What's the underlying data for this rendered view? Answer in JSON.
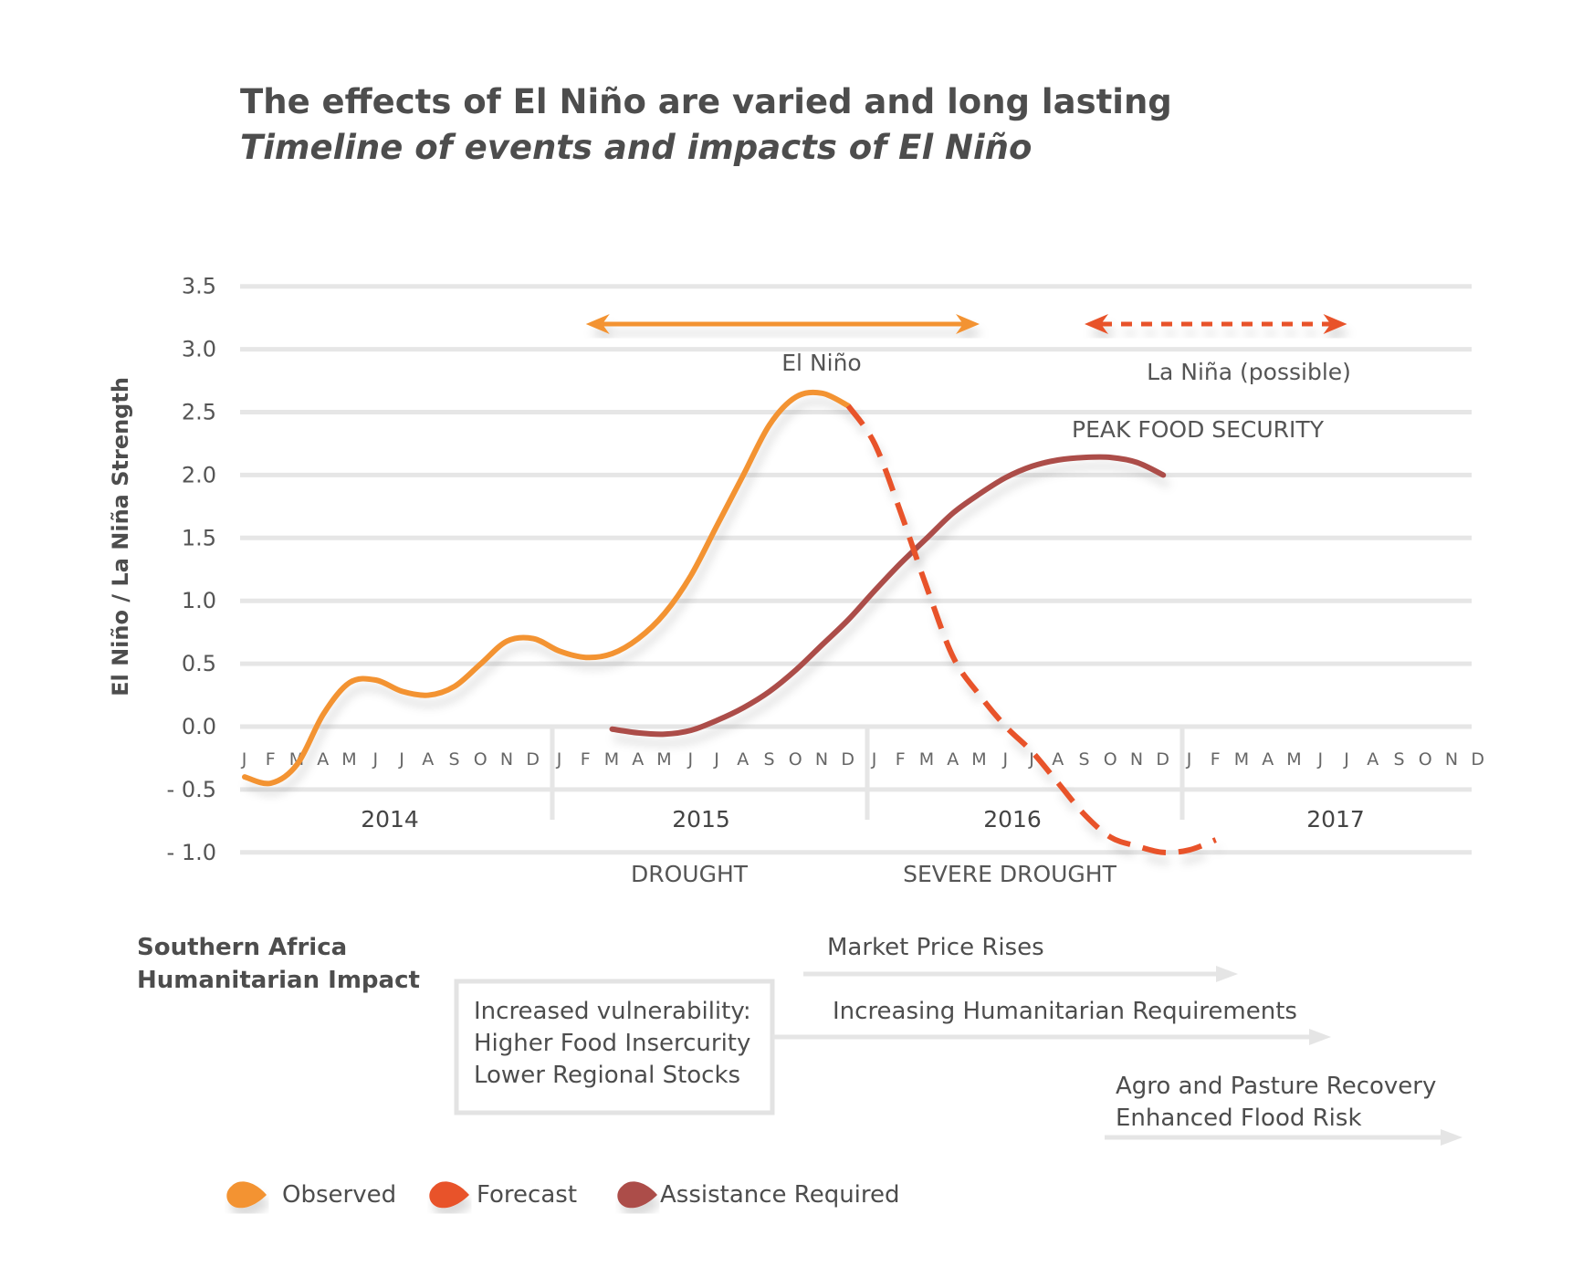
{
  "chart_data": {
    "type": "line",
    "title": "The effects of El Niño are varied and long lasting",
    "subtitle": "Timeline of events and impacts of El Niño",
    "ylabel": "El Niño / La Niña Strength",
    "ylim": [
      -1.0,
      3.5
    ],
    "yticks": [
      "3.5",
      "3.0",
      "2.5",
      "2.0",
      "1.5",
      "1.0",
      "0.5",
      "0.0",
      "- 0.5",
      "- 1.0"
    ],
    "ytick_values": [
      3.5,
      3.0,
      2.5,
      2.0,
      1.5,
      1.0,
      0.5,
      0.0,
      -0.5,
      -1.0
    ],
    "grid": true,
    "month_labels": [
      "J",
      "F",
      "M",
      "A",
      "M",
      "J",
      "J",
      "A",
      "S",
      "O",
      "N",
      "D"
    ],
    "years": [
      "2014",
      "2015",
      "2016",
      "2017"
    ],
    "series": [
      {
        "name": "Observed",
        "color": "#f39333",
        "style": "solid",
        "points": [
          [
            0,
            -0.4
          ],
          [
            1,
            -0.45
          ],
          [
            2,
            -0.3
          ],
          [
            3,
            0.1
          ],
          [
            4,
            0.35
          ],
          [
            5,
            0.37
          ],
          [
            6,
            0.28
          ],
          [
            7,
            0.25
          ],
          [
            8,
            0.32
          ],
          [
            9,
            0.5
          ],
          [
            10,
            0.68
          ],
          [
            11,
            0.7
          ],
          [
            12,
            0.6
          ],
          [
            13,
            0.55
          ],
          [
            14,
            0.58
          ],
          [
            15,
            0.7
          ],
          [
            16,
            0.9
          ],
          [
            17,
            1.2
          ],
          [
            18,
            1.6
          ],
          [
            19,
            2.0
          ],
          [
            20,
            2.4
          ],
          [
            21,
            2.62
          ],
          [
            22,
            2.65
          ],
          [
            23,
            2.55
          ]
        ]
      },
      {
        "name": "Forecast",
        "color": "#e8522a",
        "style": "dashed",
        "points": [
          [
            23,
            2.55
          ],
          [
            24,
            2.25
          ],
          [
            25,
            1.7
          ],
          [
            26,
            1.1
          ],
          [
            27,
            0.55
          ],
          [
            28,
            0.25
          ],
          [
            29,
            0.0
          ],
          [
            30,
            -0.2
          ],
          [
            31,
            -0.45
          ],
          [
            32,
            -0.7
          ],
          [
            33,
            -0.88
          ],
          [
            34,
            -0.95
          ],
          [
            35,
            -1.0
          ],
          [
            36,
            -0.98
          ],
          [
            37,
            -0.9
          ]
        ]
      },
      {
        "name": "Assistance Required",
        "color": "#ac4d48",
        "style": "solid",
        "points": [
          [
            14,
            -0.02
          ],
          [
            15,
            -0.05
          ],
          [
            16,
            -0.06
          ],
          [
            17,
            -0.03
          ],
          [
            18,
            0.05
          ],
          [
            19,
            0.15
          ],
          [
            20,
            0.28
          ],
          [
            21,
            0.45
          ],
          [
            22,
            0.65
          ],
          [
            23,
            0.85
          ],
          [
            24,
            1.08
          ],
          [
            25,
            1.3
          ],
          [
            26,
            1.5
          ],
          [
            27,
            1.7
          ],
          [
            28,
            1.85
          ],
          [
            29,
            1.98
          ],
          [
            30,
            2.07
          ],
          [
            31,
            2.12
          ],
          [
            32,
            2.14
          ],
          [
            33,
            2.14
          ],
          [
            34,
            2.1
          ],
          [
            35,
            2.0
          ]
        ]
      }
    ],
    "annotations": {
      "el_nino": "El Niño",
      "la_nina": "La Niña (possible)",
      "peak_food_security": "PEAK FOOD SECURITY",
      "drought": "DROUGHT",
      "severe_drought": "SEVERE DROUGHT"
    },
    "phase_arrows": [
      {
        "label": "El Niño",
        "start": 13,
        "end": 28,
        "style": "solid",
        "color": "#f39333"
      },
      {
        "label": "La Niña (possible)",
        "start": 32,
        "end": 42,
        "style": "dashed",
        "color": "#e8522a"
      }
    ]
  },
  "impacts": {
    "heading_line1": "Southern Africa",
    "heading_line2": "Humanitarian Impact",
    "box_lines": [
      "Increased vulnerability:",
      "Higher Food Insercurity",
      "Lower Regional Stocks"
    ],
    "market": "Market Price Rises",
    "requirements": "Increasing Humanitarian Requirements",
    "recovery_line1": "Agro and Pasture Recovery",
    "recovery_line2": "Enhanced Flood Risk"
  },
  "legend": [
    {
      "label": "Observed",
      "color": "#f39333"
    },
    {
      "label": "Forecast",
      "color": "#e8522a"
    },
    {
      "label": "Assistance Required",
      "color": "#ac4d48"
    }
  ]
}
